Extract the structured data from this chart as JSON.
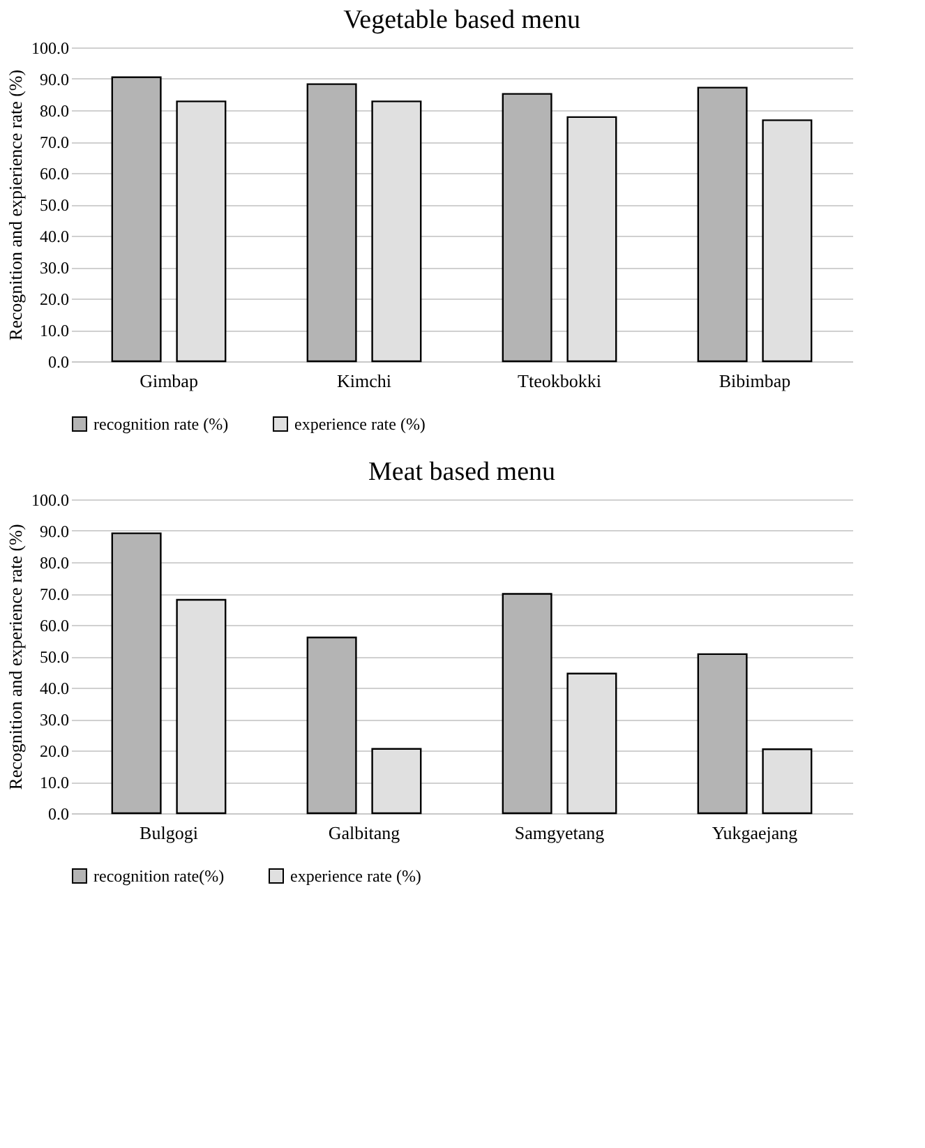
{
  "chart_data": [
    {
      "type": "bar",
      "title": "Vegetable based menu",
      "ylabel": "Recognition and expierience rate (%)",
      "categories": [
        "Gimbap",
        "Kimchi",
        "Tteokbokki",
        "Bibimbap"
      ],
      "series": [
        {
          "name": "recognition rate (%)",
          "color": "#b4b4b4",
          "values": [
            90.5,
            88.3,
            85.2,
            87.2
          ]
        },
        {
          "name": "experience rate (%)",
          "color": "#e0e0e0",
          "values": [
            82.8,
            82.8,
            77.8,
            76.8
          ]
        }
      ],
      "ylim": [
        0,
        100
      ],
      "yticks": [
        {
          "value": 0,
          "label": "0.0"
        },
        {
          "value": 10,
          "label": "10.0"
        },
        {
          "value": 20,
          "label": "20.0"
        },
        {
          "value": 30,
          "label": "30.0"
        },
        {
          "value": 40,
          "label": "40.0"
        },
        {
          "value": 50,
          "label": "50.0"
        },
        {
          "value": 60,
          "label": "60.0"
        },
        {
          "value": 70,
          "label": "70.0"
        },
        {
          "value": 80,
          "label": "80.0"
        },
        {
          "value": 90,
          "label": "90.0"
        },
        {
          "value": 100,
          "label": "100.0"
        }
      ],
      "grid": "y",
      "legend": "bottom"
    },
    {
      "type": "bar",
      "title": "Meat based menu",
      "ylabel": "Recognition and experience rate (%)",
      "categories": [
        "Bulgogi",
        "Galbitang",
        "Samgyetang",
        "Yukgaejang"
      ],
      "series": [
        {
          "name": "recognition rate(%)",
          "color": "#b4b4b4",
          "values": [
            89.2,
            56.0,
            69.9,
            50.7
          ]
        },
        {
          "name": "experience rate (%)",
          "color": "#e0e0e0",
          "values": [
            68.0,
            20.5,
            44.5,
            20.4
          ]
        }
      ],
      "ylim": [
        0,
        100
      ],
      "yticks": [
        {
          "value": 0,
          "label": "0.0"
        },
        {
          "value": 10,
          "label": "10.0"
        },
        {
          "value": 20,
          "label": "20.0"
        },
        {
          "value": 30,
          "label": "30.0"
        },
        {
          "value": 40,
          "label": "40.0"
        },
        {
          "value": 50,
          "label": "50.0"
        },
        {
          "value": 60,
          "label": "60.0"
        },
        {
          "value": 70,
          "label": "70.0"
        },
        {
          "value": 80,
          "label": "80.0"
        },
        {
          "value": 90,
          "label": "90.0"
        },
        {
          "value": 100,
          "label": "100.0"
        }
      ],
      "grid": "y",
      "legend": "bottom"
    }
  ]
}
